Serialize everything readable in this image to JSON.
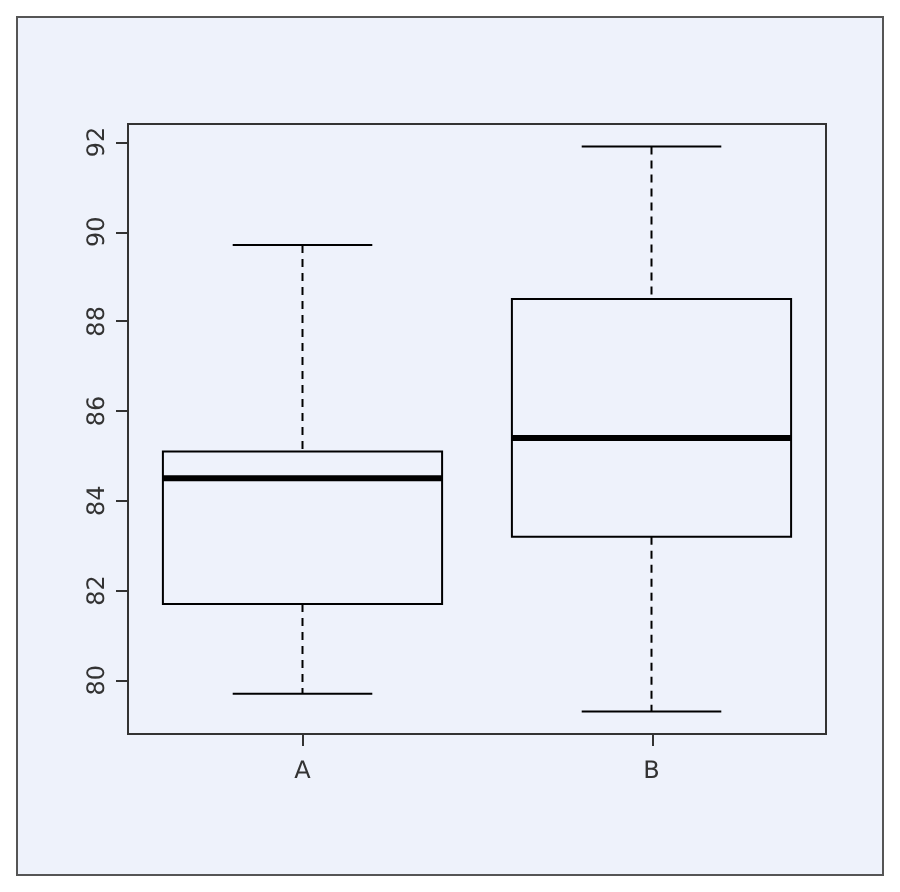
{
  "chart_data": {
    "type": "box",
    "categories": [
      "A",
      "B"
    ],
    "color": "#000000",
    "boxes": [
      {
        "low": 79.7,
        "q1": 81.7,
        "median": 84.5,
        "q3": 85.1,
        "high": 89.7
      },
      {
        "low": 79.3,
        "q1": 83.2,
        "median": 85.4,
        "q3": 88.5,
        "high": 91.9
      }
    ],
    "ylim": [
      78.8,
      92.4
    ],
    "yticks": [
      80,
      82,
      84,
      86,
      88,
      90,
      92
    ],
    "grid": false
  }
}
